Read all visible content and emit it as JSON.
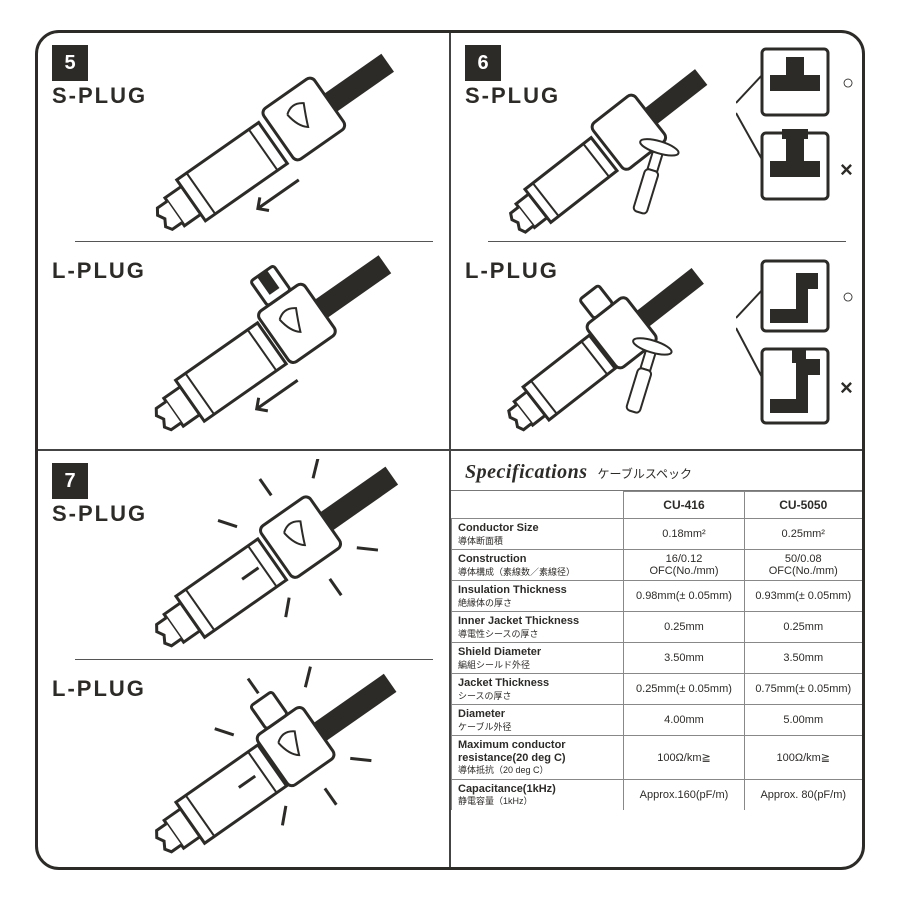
{
  "steps": {
    "p5": "5",
    "p6": "6",
    "p7": "7"
  },
  "labels": {
    "splug": "S-PLUG",
    "lplug": "L-PLUG"
  },
  "marks": {
    "ok": "○",
    "ng": "×"
  },
  "spec": {
    "title_en": "Specifications",
    "title_jp": "ケーブルスペック",
    "cols": {
      "c1": "CU-416",
      "c2": "CU-5050"
    },
    "rows": [
      {
        "en": "Conductor Size",
        "jp": "導体断面積",
        "v1": "0.18mm²",
        "v2": "0.25mm²"
      },
      {
        "en": "Construction",
        "jp": "導体構成（素線数／素線径）",
        "v1": "16/0.12 OFC(No./mm)",
        "v2": "50/0.08 OFC(No./mm)"
      },
      {
        "en": "Insulation Thickness",
        "jp": "絶縁体の厚さ",
        "v1": "0.98mm(± 0.05mm)",
        "v2": "0.93mm(± 0.05mm)"
      },
      {
        "en": "Inner Jacket Thickness",
        "jp": "導電性シースの厚さ",
        "v1": "0.25mm",
        "v2": "0.25mm"
      },
      {
        "en": "Shield Diameter",
        "jp": "編組シールド外径",
        "v1": "3.50mm",
        "v2": "3.50mm"
      },
      {
        "en": "Jacket Thickness",
        "jp": "シースの厚さ",
        "v1": "0.25mm(± 0.05mm)",
        "v2": "0.75mm(± 0.05mm)"
      },
      {
        "en": "Diameter",
        "jp": "ケーブル外径",
        "v1": "4.00mm",
        "v2": "5.00mm"
      },
      {
        "en": "Maximum conductor resistance(20 deg C)",
        "jp": "導体抵抗（20 deg C）",
        "v1": "100Ω/km≧",
        "v2": "100Ω/km≧"
      },
      {
        "en": "Capacitance(1kHz)",
        "jp": "静電容量（1kHz）",
        "v1": "Approx.160(pF/m)",
        "v2": "Approx. 80(pF/m)"
      }
    ]
  },
  "colors": {
    "ink": "#2d2b28",
    "line": "#444444",
    "border": "#888888",
    "bg": "#ffffff"
  }
}
